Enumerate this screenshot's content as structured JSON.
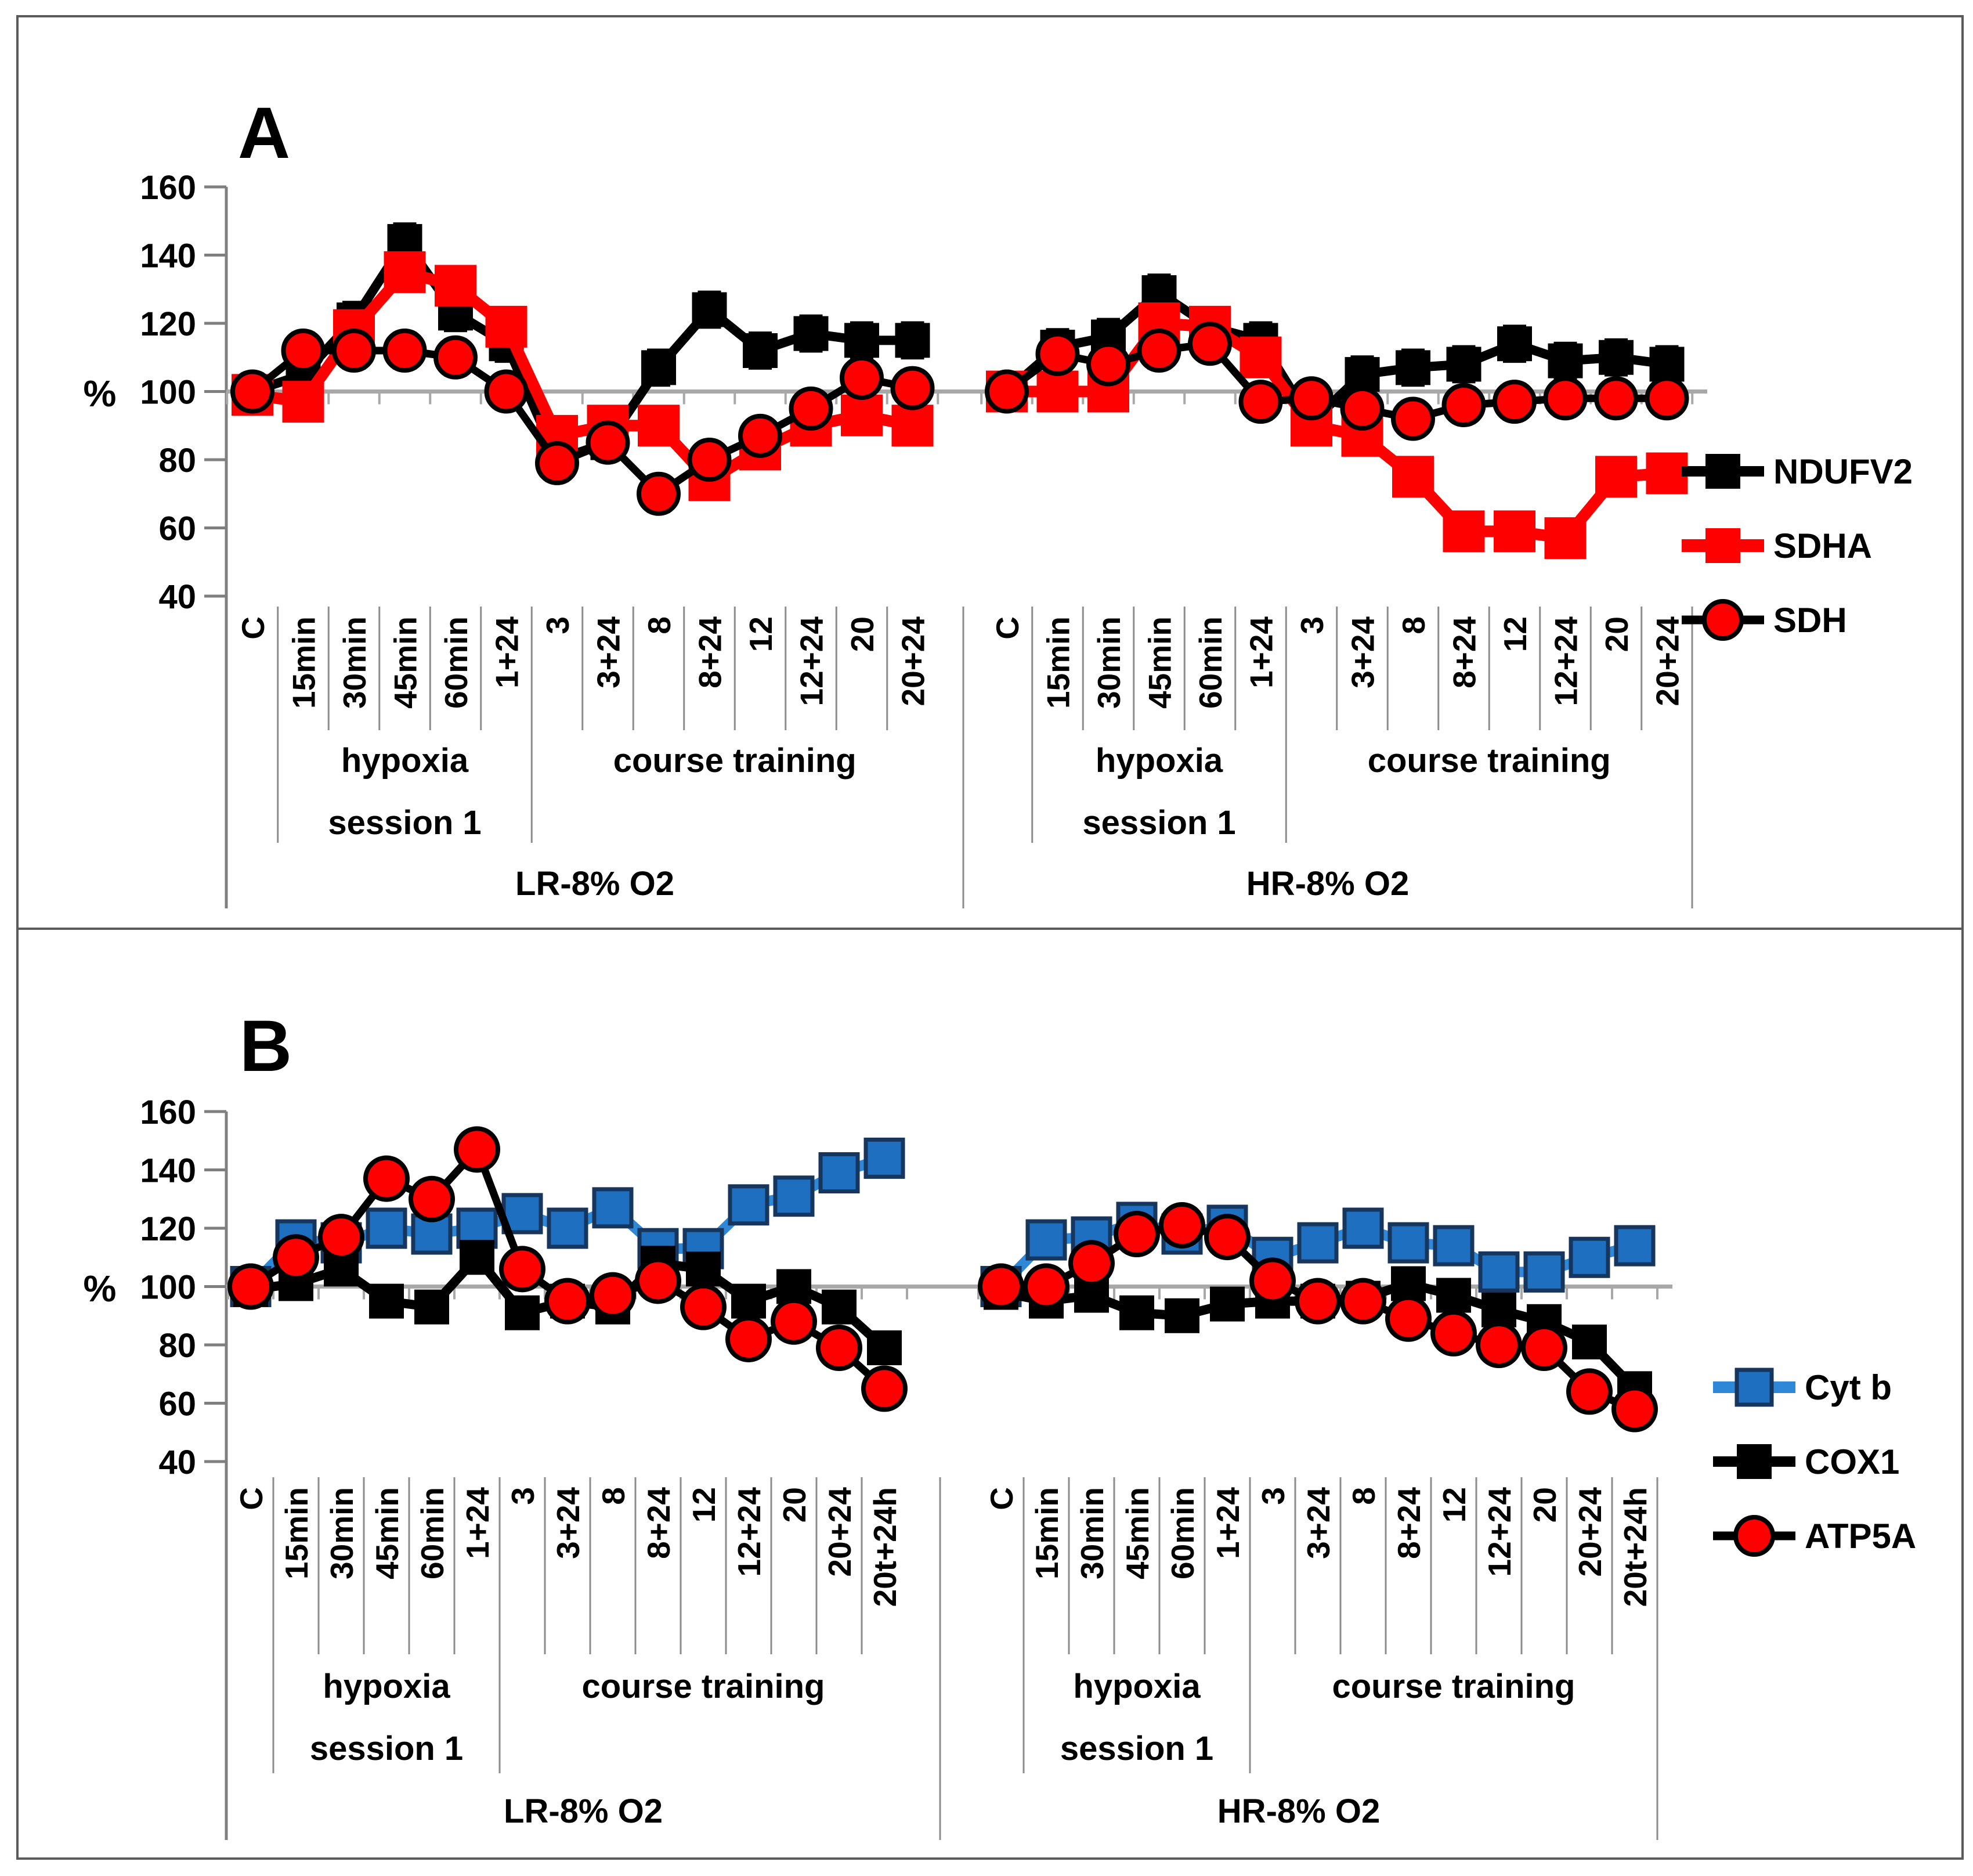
{
  "figure": {
    "background": "#FFFFFF",
    "border_color": "#5A5A5A",
    "axis_color": "#7F7F7F",
    "gridline_color": "#A8A8A8",
    "separator_color": "#8C8C8C"
  },
  "chart_data": [
    {
      "type": "line",
      "panel_label": "A",
      "ylabel": "%",
      "ylim": [
        40,
        160
      ],
      "yticks": [
        160,
        140,
        120,
        100,
        80,
        60,
        40
      ],
      "baseline": 100,
      "grid": "baseline-only",
      "legend_position": "right",
      "categories": [
        "C",
        "15min",
        "30min",
        "45min",
        "60min",
        "1+24",
        "3",
        "3+24",
        "8",
        "8+24",
        "12",
        "12+24",
        "20",
        "20+24"
      ],
      "phases": [
        {
          "label_lines": [
            "hypoxia",
            "session 1"
          ],
          "from_cat": 1,
          "to_cat": 5
        },
        {
          "label_lines": [
            "course training"
          ],
          "from_cat": 6,
          "to_cat": 13
        }
      ],
      "series_defs": [
        {
          "name": "NDUFV2",
          "marker": "square",
          "line_color": "#000000",
          "marker_fill": "#000000",
          "marker_stroke": "none",
          "line_w": 16,
          "size": 60,
          "err": 5
        },
        {
          "name": "SDHA",
          "marker": "square",
          "line_color": "#FE0000",
          "marker_fill": "#FE0000",
          "marker_stroke": "none",
          "line_w": 20,
          "size": 72,
          "err": 5
        },
        {
          "name": "SDH",
          "marker": "circle",
          "line_color": "#000000",
          "marker_fill": "#FE0000",
          "marker_stroke": "#000000",
          "line_w": 13,
          "size": 34,
          "err": 5
        }
      ],
      "groups": [
        {
          "name": "LR-8% O2",
          "values": {
            "NDUFV2": [
              100,
              105,
              121,
              144,
              123,
              114,
              80,
              85,
              107,
              124,
              112,
              117,
              115,
              115
            ],
            "SDHA": [
              99,
              97,
              118,
              135,
              131,
              119,
              87,
              90,
              90,
              74,
              83,
              90,
              93,
              90
            ],
            "SDH": [
              100,
              112,
              112,
              112,
              110,
              100,
              79,
              85,
              70,
              80,
              87,
              95,
              104,
              101
            ]
          }
        },
        {
          "name": "HR-8% O2",
          "values": {
            "NDUFV2": [
              100,
              113,
              116,
              129,
              119,
              115,
              91,
              105,
              107,
              108,
              114,
              109,
              110,
              108
            ],
            "SDHA": [
              100,
              100,
              100,
              120,
              119,
              110,
              90,
              87,
              75,
              59,
              59,
              57,
              75,
              76
            ],
            "SDH": [
              100,
              111,
              108,
              112,
              114,
              97,
              98,
              95,
              92,
              96,
              97,
              98,
              98,
              98
            ]
          }
        }
      ]
    },
    {
      "type": "line",
      "panel_label": "B",
      "ylabel": "%",
      "ylim": [
        40,
        160
      ],
      "yticks": [
        160,
        140,
        120,
        100,
        80,
        60,
        40
      ],
      "baseline": 100,
      "grid": "baseline-only",
      "legend_position": "right",
      "categories": [
        "C",
        "15min",
        "30min",
        "45min",
        "60min",
        "1+24",
        "3",
        "3+24",
        "8",
        "8+24",
        "12",
        "12+24",
        "20",
        "20+24",
        "20t+24h"
      ],
      "phases": [
        {
          "label_lines": [
            "hypoxia",
            "session 1"
          ],
          "from_cat": 1,
          "to_cat": 5
        },
        {
          "label_lines": [
            "course training"
          ],
          "from_cat": 6,
          "to_cat": 14
        }
      ],
      "series_defs": [
        {
          "name": "Cyt b",
          "marker": "square",
          "line_color": "#2F87D8",
          "marker_fill": "#1F6FC0",
          "marker_stroke": "#17365D",
          "line_w": 18,
          "size": 64,
          "err": 4.5
        },
        {
          "name": "COX1",
          "marker": "square",
          "line_color": "#000000",
          "marker_fill": "#000000",
          "marker_stroke": "none",
          "line_w": 16,
          "size": 60,
          "err": 3.5
        },
        {
          "name": "ATP5A",
          "marker": "circle",
          "line_color": "#000000",
          "marker_fill": "#FE0000",
          "marker_stroke": "#000000",
          "line_w": 13,
          "size": 36,
          "err": 5
        }
      ],
      "groups": [
        {
          "name": "LR-8% O2",
          "values": {
            "Cyt b": [
              100,
              116,
              115,
              120,
              118,
              120,
              125,
              120,
              127,
              113,
              113,
              128,
              131,
              139,
              144
            ],
            "COX1": [
              99,
              101,
              106,
              95,
              93,
              110,
              91,
              95,
              93,
              108,
              106,
              95,
              100,
              93,
              79
            ],
            "ATP5A": [
              100,
              110,
              117,
              137,
              130,
              147,
              106,
              95,
              97,
              102,
              93,
              82,
              88,
              79,
              65
            ]
          }
        },
        {
          "name": "HR-8% O2",
          "values": {
            "Cyt b": [
              100,
              116,
              117,
              122,
              118,
              121,
              110,
              115,
              120,
              115,
              114,
              105,
              105,
              110,
              114
            ],
            "COX1": [
              98,
              95,
              97,
              91,
              90,
              94,
              95,
              95,
              96,
              101,
              97,
              92,
              88,
              81,
              65
            ],
            "ATP5A": [
              100,
              100,
              108,
              118,
              121,
              117,
              102,
              95,
              95,
              89,
              84,
              80,
              79,
              64,
              58
            ]
          }
        }
      ]
    }
  ]
}
